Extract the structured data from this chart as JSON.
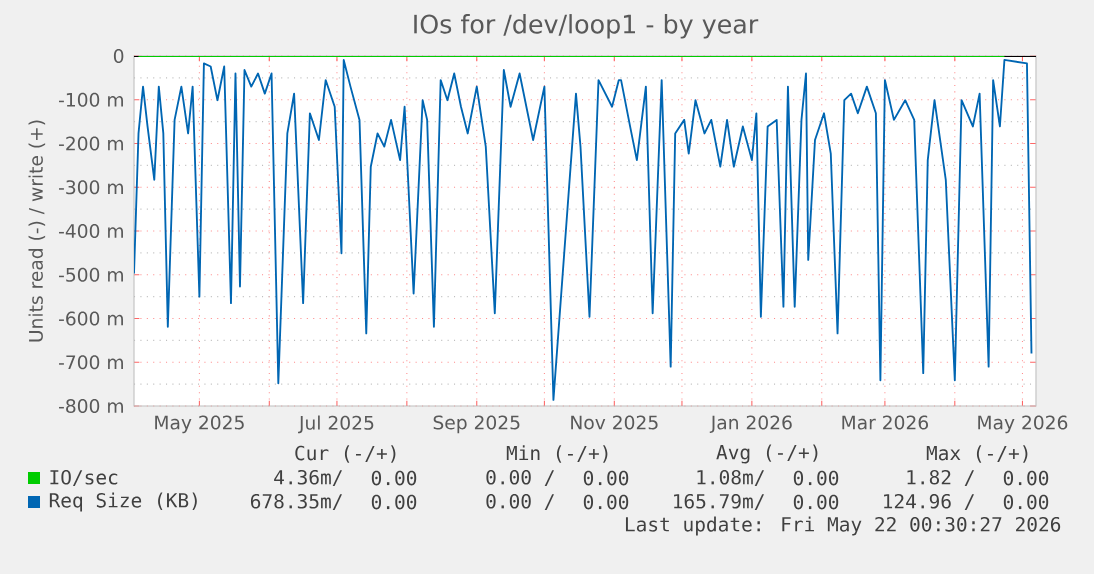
{
  "chart_data": {
    "type": "line",
    "title": "IOs for /dev/loop1 - by year",
    "ylabel": "Units read (-) / write (+)",
    "xlim": [
      "2025-04-02",
      "2026-05-07"
    ],
    "xticks": [
      {
        "value": "2025-05-01",
        "label": "May 2025"
      },
      {
        "value": "2025-06-01",
        "label": null
      },
      {
        "value": "2025-07-01",
        "label": "Jul 2025"
      },
      {
        "value": "2025-08-01",
        "label": null
      },
      {
        "value": "2025-09-01",
        "label": "Sep 2025"
      },
      {
        "value": "2025-10-01",
        "label": null
      },
      {
        "value": "2025-11-01",
        "label": "Nov 2025"
      },
      {
        "value": "2025-12-01",
        "label": null
      },
      {
        "value": "2026-01-01",
        "label": "Jan 2026"
      },
      {
        "value": "2026-02-01",
        "label": null
      },
      {
        "value": "2026-03-01",
        "label": "Mar 2026"
      },
      {
        "value": "2026-04-01",
        "label": null
      },
      {
        "value": "2026-05-01",
        "label": "May 2026"
      }
    ],
    "ylim": [
      -800,
      0
    ],
    "yticks": [
      {
        "value": -800,
        "label": "-800 m"
      },
      {
        "value": -700,
        "label": "-700 m"
      },
      {
        "value": -600,
        "label": "-600 m"
      },
      {
        "value": -500,
        "label": "-500 m"
      },
      {
        "value": -400,
        "label": "-400 m"
      },
      {
        "value": -300,
        "label": "-300 m"
      },
      {
        "value": -200,
        "label": "-200 m"
      },
      {
        "value": -100,
        "label": "-100 m"
      },
      0
    ],
    "grid": true,
    "legend": "bottom",
    "marker": "none",
    "ref_lines": [
      {
        "axis": "y",
        "value": 0,
        "color": "#000000"
      }
    ],
    "series": [
      {
        "name": "IO/sec",
        "color": "#00cc00",
        "x": [
          "2025-04-04",
          "2025-04-08",
          "2025-05-19",
          "2025-06-02",
          "2025-06-23",
          "2025-07-11",
          "2025-08-04",
          "2025-09-09",
          "2025-10-05",
          "2025-11-08",
          "2025-12-04",
          "2026-01-08",
          "2026-02-05",
          "2026-03-10",
          "2026-04-09",
          "2026-04-23"
        ],
        "values": [
          0,
          0,
          0,
          0,
          0,
          0,
          0,
          0,
          0,
          0,
          0,
          0,
          0,
          0,
          0,
          0
        ]
      },
      {
        "name": "Req Size (KB)",
        "color": "#0066b3",
        "x": [
          "2025-04-02",
          "2025-04-04",
          "2025-04-06",
          "2025-04-08",
          "2025-04-11",
          "2025-04-13",
          "2025-04-15",
          "2025-04-17",
          "2025-04-20",
          "2025-04-23",
          "2025-04-26",
          "2025-04-28",
          "2025-05-01",
          "2025-05-03",
          "2025-05-06",
          "2025-05-09",
          "2025-05-12",
          "2025-05-15",
          "2025-05-17",
          "2025-05-19",
          "2025-05-21",
          "2025-05-24",
          "2025-05-27",
          "2025-05-30",
          "2025-06-02",
          "2025-06-05",
          "2025-06-09",
          "2025-06-12",
          "2025-06-16",
          "2025-06-19",
          "2025-06-23",
          "2025-06-26",
          "2025-06-30",
          "2025-07-03",
          "2025-07-04",
          "2025-07-07",
          "2025-07-11",
          "2025-07-14",
          "2025-07-16",
          "2025-07-19",
          "2025-07-22",
          "2025-07-25",
          "2025-07-29",
          "2025-07-31",
          "2025-08-04",
          "2025-08-08",
          "2025-08-10",
          "2025-08-13",
          "2025-08-16",
          "2025-08-19",
          "2025-08-22",
          "2025-08-25",
          "2025-08-28",
          "2025-09-01",
          "2025-09-05",
          "2025-09-09",
          "2025-09-13",
          "2025-09-16",
          "2025-09-20",
          "2025-09-26",
          "2025-10-01",
          "2025-10-05",
          "2025-10-15",
          "2025-10-17",
          "2025-10-21",
          "2025-10-25",
          "2025-10-31",
          "2025-11-03",
          "2025-11-04",
          "2025-11-08",
          "2025-11-11",
          "2025-11-15",
          "2025-11-18",
          "2025-11-22",
          "2025-11-26",
          "2025-11-28",
          "2025-12-02",
          "2025-12-04",
          "2025-12-07",
          "2025-12-11",
          "2025-12-14",
          "2025-12-18",
          "2025-12-21",
          "2025-12-24",
          "2025-12-28",
          "2026-01-01",
          "2026-01-03",
          "2026-01-05",
          "2026-01-08",
          "2026-01-12",
          "2026-01-15",
          "2026-01-17",
          "2026-01-20",
          "2026-01-23",
          "2026-01-25",
          "2026-01-26",
          "2026-01-29",
          "2026-02-02",
          "2026-02-05",
          "2026-02-08",
          "2026-02-11",
          "2026-02-14",
          "2026-02-17",
          "2026-02-21",
          "2026-02-25",
          "2026-02-27",
          "2026-03-01",
          "2026-03-05",
          "2026-03-10",
          "2026-03-14",
          "2026-03-18",
          "2026-03-20",
          "2026-03-23",
          "2026-03-28",
          "2026-04-01",
          "2026-04-04",
          "2026-04-09",
          "2026-04-12",
          "2026-04-16",
          "2026-04-18",
          "2026-04-21",
          "2026-04-23",
          "2026-05-03",
          "2026-05-05"
        ],
        "values": [
          -497,
          -177,
          -70,
          -161,
          -283,
          -70,
          -177,
          -619,
          -146,
          -70,
          -177,
          -70,
          -550,
          -17,
          -24,
          -101,
          -24,
          -565,
          -40,
          -527,
          -32,
          -70,
          -40,
          -86,
          -40,
          -748,
          -177,
          -86,
          -565,
          -131,
          -192,
          -55,
          -116,
          -451,
          -9,
          -70,
          -146,
          -634,
          -253,
          -177,
          -207,
          -146,
          -238,
          -116,
          -543,
          -101,
          -146,
          -619,
          -55,
          -101,
          -40,
          -116,
          -177,
          -70,
          -207,
          -588,
          -32,
          -116,
          -40,
          -192,
          -70,
          -786,
          -86,
          -207,
          -596,
          -55,
          -116,
          -55,
          -55,
          -161,
          -238,
          -70,
          -588,
          -55,
          -710,
          -177,
          -146,
          -223,
          -101,
          -177,
          -146,
          -253,
          -146,
          -253,
          -161,
          -238,
          -131,
          -596,
          -161,
          -146,
          -573,
          -70,
          -573,
          -146,
          -40,
          -466,
          -192,
          -131,
          -223,
          -634,
          -101,
          -86,
          -131,
          -70,
          -131,
          -741,
          -55,
          -146,
          -101,
          -146,
          -725,
          -238,
          -101,
          -283,
          -741,
          -101,
          -161,
          -86,
          -710,
          -55,
          -161,
          -9,
          -17,
          -680
        ]
      }
    ],
    "annotations": [
      "Cur (-/+)",
      "Min (-/+)",
      "Avg (-/+)",
      "Max (-/+)",
      "4.36m/",
      "0.00",
      "0.00 /",
      "0.00",
      "1.08m/",
      "0.00",
      "1.82 /",
      "0.00",
      "678.35m/",
      "0.00",
      "0.00 /",
      "0.00",
      "165.79m/",
      "0.00",
      "124.96 /",
      "0.00",
      "Last update: Fri May 22 00:30:27 2026"
    ]
  }
}
